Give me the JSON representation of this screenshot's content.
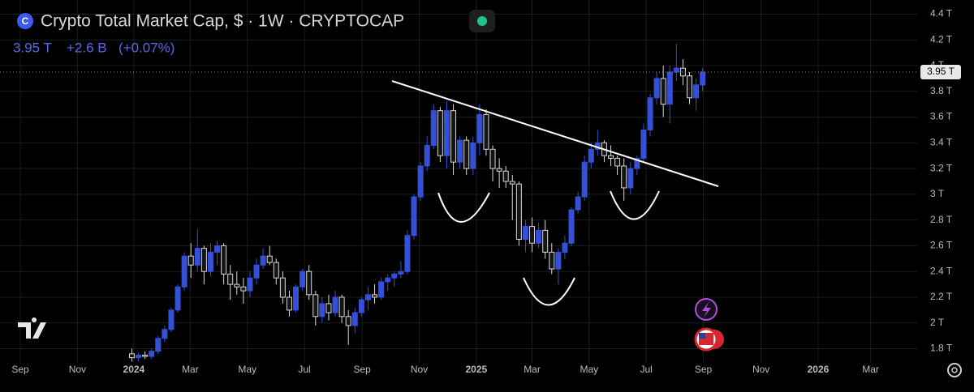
{
  "chart_data": {
    "type": "candlestick",
    "title": "Crypto Total Market Cap, $ · 1W · CRYPTOCAP",
    "header": {
      "last": "3.95 T",
      "change": "+2.6 B",
      "change_pct": "(+0.07%)"
    },
    "price_line": {
      "value": 3.95,
      "label": "3.95 T"
    },
    "up_color": "#3450d8",
    "down_color": "#d9d9d9",
    "grid": true,
    "xlim": [
      -3.1,
      136.7
    ],
    "ylim": [
      1.69,
      4.51
    ],
    "xticks": [
      {
        "value": 0,
        "label": "Sep"
      },
      {
        "value": 8.7,
        "label": "Nov"
      },
      {
        "value": 17.3,
        "label": "2024"
      },
      {
        "value": 25.9,
        "label": "Mar"
      },
      {
        "value": 34.6,
        "label": "May"
      },
      {
        "value": 43.3,
        "label": "Jul"
      },
      {
        "value": 52.1,
        "label": "Sep"
      },
      {
        "value": 60.8,
        "label": "Nov"
      },
      {
        "value": 69.5,
        "label": "2025"
      },
      {
        "value": 78.0,
        "label": "Mar"
      },
      {
        "value": 86.7,
        "label": "May"
      },
      {
        "value": 95.4,
        "label": "Jul"
      },
      {
        "value": 104.1,
        "label": "Sep"
      },
      {
        "value": 112.9,
        "label": "Nov"
      },
      {
        "value": 121.6,
        "label": "2026"
      },
      {
        "value": 129.6,
        "label": "Mar"
      }
    ],
    "yticks": [
      {
        "value": 1.8,
        "label": "1.8 T"
      },
      {
        "value": 2.0,
        "label": "2 T"
      },
      {
        "value": 2.2,
        "label": "2.2 T"
      },
      {
        "value": 2.4,
        "label": "2.4 T"
      },
      {
        "value": 2.6,
        "label": "2.6 T"
      },
      {
        "value": 2.8,
        "label": "2.8 T"
      },
      {
        "value": 3.0,
        "label": "3 T"
      },
      {
        "value": 3.2,
        "label": "3.2 T"
      },
      {
        "value": 3.4,
        "label": "3.4 T"
      },
      {
        "value": 3.6,
        "label": "3.6 T"
      },
      {
        "value": 3.8,
        "label": "3.8 T"
      },
      {
        "value": 4.0,
        "label": "4 T"
      },
      {
        "value": 4.2,
        "label": "4.2 T"
      },
      {
        "value": 4.4,
        "label": "4.4 T"
      }
    ],
    "x": [
      17,
      18,
      19,
      20,
      21,
      22,
      23,
      24,
      25,
      26,
      27,
      28,
      29,
      30,
      31,
      32,
      33,
      34,
      35,
      36,
      37,
      38,
      39,
      40,
      41,
      42,
      43,
      44,
      45,
      46,
      47,
      48,
      49,
      50,
      51,
      52,
      53,
      54,
      55,
      56,
      57,
      58,
      59,
      60,
      61,
      62,
      63,
      64,
      65,
      66,
      67,
      68,
      69,
      70,
      71,
      72,
      73,
      74,
      75,
      76,
      77,
      78,
      79,
      80,
      81,
      82,
      83,
      84,
      85,
      86,
      87,
      88,
      89,
      90,
      91,
      92,
      93,
      94,
      95,
      96,
      97,
      98,
      99,
      100,
      101,
      102,
      103,
      104
    ],
    "open": [
      1.76,
      1.73,
      1.75,
      1.74,
      1.78,
      1.88,
      1.95,
      2.1,
      2.28,
      2.52,
      2.45,
      2.58,
      2.4,
      2.55,
      2.6,
      2.38,
      2.3,
      2.28,
      2.25,
      2.35,
      2.45,
      2.52,
      2.47,
      2.35,
      2.2,
      2.1,
      2.28,
      2.4,
      2.22,
      2.05,
      2.15,
      2.08,
      2.2,
      2.05,
      1.98,
      2.08,
      2.18,
      2.22,
      2.2,
      2.32,
      2.35,
      2.38,
      2.4,
      2.68,
      2.98,
      3.22,
      3.38,
      3.65,
      3.3,
      3.65,
      3.25,
      3.42,
      3.2,
      3.4,
      3.62,
      3.35,
      3.2,
      3.18,
      3.1,
      3.08,
      2.65,
      2.75,
      2.62,
      2.72,
      2.55,
      2.42,
      2.55,
      2.62,
      2.88,
      2.98,
      3.25,
      3.35,
      3.4,
      3.3,
      3.28,
      3.22,
      3.05,
      3.2,
      3.28,
      3.5,
      3.75,
      3.9,
      3.7,
      3.95,
      3.98,
      3.92,
      3.75,
      3.85
    ],
    "high": [
      1.8,
      1.77,
      1.78,
      1.8,
      1.9,
      1.98,
      2.12,
      2.3,
      2.55,
      2.62,
      2.73,
      2.6,
      2.62,
      2.64,
      2.62,
      2.45,
      2.4,
      2.35,
      2.4,
      2.5,
      2.58,
      2.6,
      2.5,
      2.4,
      2.25,
      2.3,
      2.42,
      2.45,
      2.25,
      2.2,
      2.22,
      2.25,
      2.22,
      2.1,
      2.12,
      2.2,
      2.28,
      2.3,
      2.35,
      2.38,
      2.4,
      2.48,
      2.72,
      3.0,
      3.25,
      3.45,
      3.7,
      3.68,
      3.72,
      3.7,
      3.45,
      3.45,
      3.45,
      3.7,
      3.66,
      3.38,
      3.28,
      3.22,
      3.15,
      3.1,
      2.8,
      2.82,
      2.78,
      2.8,
      2.62,
      2.58,
      2.68,
      2.9,
      3.02,
      3.3,
      3.4,
      3.5,
      3.42,
      3.38,
      3.3,
      3.28,
      3.25,
      3.3,
      3.55,
      3.78,
      3.95,
      4.0,
      4.0,
      4.17,
      4.05,
      3.95,
      3.9,
      3.98
    ],
    "low": [
      1.7,
      1.7,
      1.72,
      1.72,
      1.76,
      1.85,
      1.93,
      2.08,
      2.25,
      2.35,
      2.4,
      2.3,
      2.36,
      2.45,
      2.3,
      2.18,
      2.22,
      2.15,
      2.2,
      2.3,
      2.42,
      2.45,
      2.3,
      2.15,
      2.05,
      2.08,
      2.25,
      2.18,
      1.98,
      2.0,
      2.02,
      2.05,
      2.0,
      1.83,
      1.92,
      2.05,
      2.1,
      2.15,
      2.18,
      2.25,
      2.28,
      2.35,
      2.38,
      2.65,
      2.95,
      3.18,
      3.35,
      3.25,
      3.2,
      3.15,
      3.2,
      3.15,
      3.15,
      3.3,
      3.3,
      3.1,
      3.05,
      3.05,
      2.8,
      2.6,
      2.55,
      2.55,
      2.58,
      2.5,
      2.38,
      2.3,
      2.5,
      2.6,
      2.85,
      2.95,
      3.2,
      3.3,
      3.25,
      3.22,
      3.15,
      2.95,
      3.0,
      3.15,
      3.25,
      3.45,
      3.7,
      3.6,
      3.55,
      3.88,
      3.85,
      3.7,
      3.65,
      3.8
    ],
    "close": [
      1.73,
      1.75,
      1.74,
      1.78,
      1.88,
      1.95,
      2.1,
      2.28,
      2.52,
      2.45,
      2.58,
      2.4,
      2.55,
      2.6,
      2.38,
      2.3,
      2.28,
      2.25,
      2.35,
      2.45,
      2.52,
      2.47,
      2.35,
      2.2,
      2.1,
      2.28,
      2.4,
      2.22,
      2.05,
      2.15,
      2.08,
      2.2,
      2.05,
      1.98,
      2.08,
      2.18,
      2.22,
      2.2,
      2.32,
      2.35,
      2.38,
      2.4,
      2.68,
      2.98,
      3.22,
      3.38,
      3.65,
      3.3,
      3.65,
      3.25,
      3.42,
      3.2,
      3.4,
      3.62,
      3.35,
      3.2,
      3.18,
      3.1,
      3.08,
      2.65,
      2.75,
      2.62,
      2.72,
      2.55,
      2.42,
      2.55,
      2.62,
      2.88,
      2.98,
      3.25,
      3.35,
      3.4,
      3.3,
      3.28,
      3.22,
      3.05,
      3.2,
      3.28,
      3.5,
      3.75,
      3.9,
      3.7,
      3.95,
      3.98,
      3.92,
      3.75,
      3.85,
      3.95
    ]
  }
}
